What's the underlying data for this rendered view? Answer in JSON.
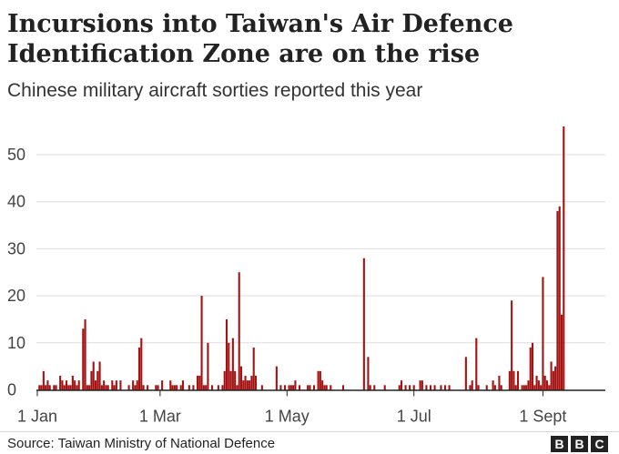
{
  "header": {
    "title_line1": "Incursions into Taiwan's Air Defence",
    "title_line2": "Identification Zone are on the rise",
    "subtitle": "Chinese military aircraft sorties reported this year"
  },
  "footer": {
    "source": "Source: Taiwan Ministry of National Defence",
    "logo_letters": [
      "B",
      "B",
      "C"
    ]
  },
  "colors": {
    "bar": "#a41212",
    "grid": "#dddddd",
    "axis": "#222222",
    "text": "#222222"
  },
  "chart_data": {
    "type": "bar",
    "title": "Incursions into Taiwan's Air Defence Identification Zone are on the rise",
    "subtitle": "Chinese military aircraft sorties reported this year",
    "ylim": [
      0,
      55
    ],
    "yticks": [
      0,
      10,
      20,
      30,
      40,
      50
    ],
    "xlim_days": [
      1,
      274
    ],
    "xticks": [
      {
        "label": "1 Jan",
        "day": 1
      },
      {
        "label": "1 Mar",
        "day": 60
      },
      {
        "label": "1 May",
        "day": 121
      },
      {
        "label": "1 Jul",
        "day": 182
      },
      {
        "label": "1 Sept",
        "day": 244
      }
    ],
    "grid": true,
    "legend": "none",
    "series": [
      {
        "points": [
          [
            2,
            1
          ],
          [
            3,
            1
          ],
          [
            4,
            4
          ],
          [
            5,
            1
          ],
          [
            6,
            2
          ],
          [
            7,
            1
          ],
          [
            9,
            1
          ],
          [
            10,
            1
          ],
          [
            12,
            3
          ],
          [
            13,
            2
          ],
          [
            14,
            1
          ],
          [
            15,
            2
          ],
          [
            16,
            1
          ],
          [
            17,
            1
          ],
          [
            18,
            3
          ],
          [
            19,
            2
          ],
          [
            20,
            1
          ],
          [
            21,
            2
          ],
          [
            23,
            13
          ],
          [
            24,
            15
          ],
          [
            25,
            1
          ],
          [
            26,
            1
          ],
          [
            27,
            4
          ],
          [
            28,
            6
          ],
          [
            29,
            2
          ],
          [
            30,
            4
          ],
          [
            31,
            6
          ],
          [
            32,
            1
          ],
          [
            33,
            2
          ],
          [
            34,
            1
          ],
          [
            35,
            1
          ],
          [
            37,
            2
          ],
          [
            38,
            1
          ],
          [
            39,
            2
          ],
          [
            41,
            2
          ],
          [
            45,
            1
          ],
          [
            47,
            2
          ],
          [
            48,
            1
          ],
          [
            49,
            2
          ],
          [
            50,
            9
          ],
          [
            51,
            11
          ],
          [
            52,
            1
          ],
          [
            54,
            1
          ],
          [
            58,
            1
          ],
          [
            59,
            1
          ],
          [
            61,
            2
          ],
          [
            65,
            2
          ],
          [
            66,
            1
          ],
          [
            67,
            1
          ],
          [
            68,
            1
          ],
          [
            70,
            1
          ],
          [
            71,
            2
          ],
          [
            74,
            1
          ],
          [
            76,
            1
          ],
          [
            78,
            3
          ],
          [
            79,
            3
          ],
          [
            80,
            20
          ],
          [
            81,
            1
          ],
          [
            82,
            1
          ],
          [
            83,
            10
          ],
          [
            85,
            1
          ],
          [
            88,
            1
          ],
          [
            90,
            1
          ],
          [
            91,
            4
          ],
          [
            92,
            15
          ],
          [
            93,
            10
          ],
          [
            94,
            4
          ],
          [
            95,
            11
          ],
          [
            96,
            4
          ],
          [
            97,
            1
          ],
          [
            98,
            25
          ],
          [
            99,
            5
          ],
          [
            100,
            2
          ],
          [
            101,
            3
          ],
          [
            102,
            2
          ],
          [
            103,
            2
          ],
          [
            104,
            3
          ],
          [
            105,
            9
          ],
          [
            106,
            3
          ],
          [
            109,
            1
          ],
          [
            116,
            5
          ],
          [
            118,
            1
          ],
          [
            120,
            1
          ],
          [
            122,
            1
          ],
          [
            123,
            1
          ],
          [
            124,
            1
          ],
          [
            125,
            2
          ],
          [
            127,
            1
          ],
          [
            131,
            1
          ],
          [
            132,
            1
          ],
          [
            134,
            1
          ],
          [
            136,
            4
          ],
          [
            137,
            4
          ],
          [
            138,
            2
          ],
          [
            139,
            1
          ],
          [
            140,
            1
          ],
          [
            142,
            1
          ],
          [
            148,
            1
          ],
          [
            158,
            28
          ],
          [
            160,
            7
          ],
          [
            161,
            1
          ],
          [
            163,
            1
          ],
          [
            168,
            1
          ],
          [
            175,
            1
          ],
          [
            176,
            2
          ],
          [
            178,
            1
          ],
          [
            180,
            1
          ],
          [
            182,
            1
          ],
          [
            185,
            2
          ],
          [
            186,
            2
          ],
          [
            188,
            1
          ],
          [
            190,
            1
          ],
          [
            192,
            1
          ],
          [
            195,
            1
          ],
          [
            197,
            1
          ],
          [
            199,
            1
          ],
          [
            207,
            7
          ],
          [
            209,
            1
          ],
          [
            210,
            2
          ],
          [
            212,
            11
          ],
          [
            213,
            1
          ],
          [
            217,
            1
          ],
          [
            220,
            2
          ],
          [
            221,
            1
          ],
          [
            223,
            3
          ],
          [
            224,
            1
          ],
          [
            228,
            4
          ],
          [
            229,
            19
          ],
          [
            230,
            4
          ],
          [
            231,
            1
          ],
          [
            232,
            4
          ],
          [
            234,
            1
          ],
          [
            235,
            1
          ],
          [
            236,
            1
          ],
          [
            237,
            2
          ],
          [
            238,
            9
          ],
          [
            239,
            10
          ],
          [
            240,
            1
          ],
          [
            241,
            3
          ],
          [
            242,
            2
          ],
          [
            243,
            1
          ],
          [
            244,
            24
          ],
          [
            245,
            3
          ],
          [
            246,
            2
          ],
          [
            247,
            1
          ],
          [
            248,
            6
          ],
          [
            249,
            4
          ],
          [
            250,
            5
          ],
          [
            251,
            38
          ],
          [
            252,
            39
          ],
          [
            253,
            16
          ],
          [
            254,
            56
          ]
        ]
      }
    ]
  }
}
